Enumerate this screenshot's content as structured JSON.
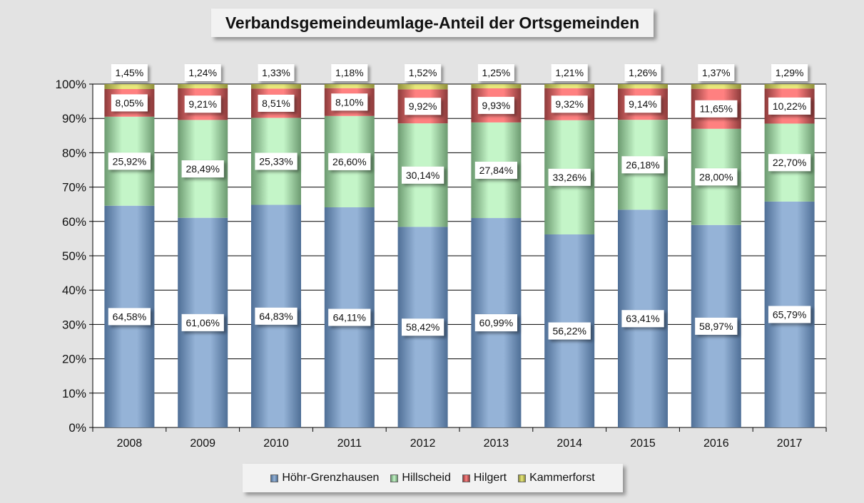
{
  "chart_data": {
    "type": "bar",
    "stacked": true,
    "title": "Verbandsgemeindeumlage-Anteil der Ortsgemeinden",
    "categories": [
      "2008",
      "2009",
      "2010",
      "2011",
      "2012",
      "2013",
      "2014",
      "2015",
      "2016",
      "2017"
    ],
    "series": [
      {
        "name": "Höhr-Grenzhausen",
        "color": "#95b3d7",
        "values": [
          64.58,
          61.06,
          64.83,
          64.11,
          58.42,
          60.99,
          56.22,
          63.41,
          58.97,
          65.79
        ],
        "labels": [
          "64,58%",
          "61,06%",
          "64,83%",
          "64,11%",
          "58,42%",
          "60,99%",
          "56,22%",
          "63,41%",
          "58,97%",
          "65,79%"
        ]
      },
      {
        "name": "Hillscheid",
        "color": "#c4f5c8",
        "values": [
          25.92,
          28.49,
          25.33,
          26.6,
          30.14,
          27.84,
          33.26,
          26.18,
          28.0,
          22.7
        ],
        "labels": [
          "25,92%",
          "28,49%",
          "25,33%",
          "26,60%",
          "30,14%",
          "27,84%",
          "33,26%",
          "26,18%",
          "28,00%",
          "22,70%"
        ]
      },
      {
        "name": "Hilgert",
        "color": "#ff8080",
        "values": [
          8.05,
          9.21,
          8.51,
          8.1,
          9.92,
          9.93,
          9.32,
          9.14,
          11.65,
          10.22
        ],
        "labels": [
          "8,05%",
          "9,21%",
          "8,51%",
          "8,10%",
          "9,92%",
          "9,93%",
          "9,32%",
          "9,14%",
          "11,65%",
          "10,22%"
        ]
      },
      {
        "name": "Kammerforst",
        "color": "#e8e87a",
        "values": [
          1.45,
          1.24,
          1.33,
          1.18,
          1.52,
          1.25,
          1.21,
          1.26,
          1.37,
          1.29
        ],
        "labels": [
          "1,45%",
          "1,24%",
          "1,33%",
          "1,18%",
          "1,52%",
          "1,25%",
          "1,21%",
          "1,26%",
          "1,37%",
          "1,29%"
        ]
      }
    ],
    "yticks": [
      "0%",
      "10%",
      "20%",
      "30%",
      "40%",
      "50%",
      "60%",
      "70%",
      "80%",
      "90%",
      "100%"
    ],
    "ylim": [
      0,
      100
    ],
    "grid": true,
    "legend": "bottom"
  }
}
